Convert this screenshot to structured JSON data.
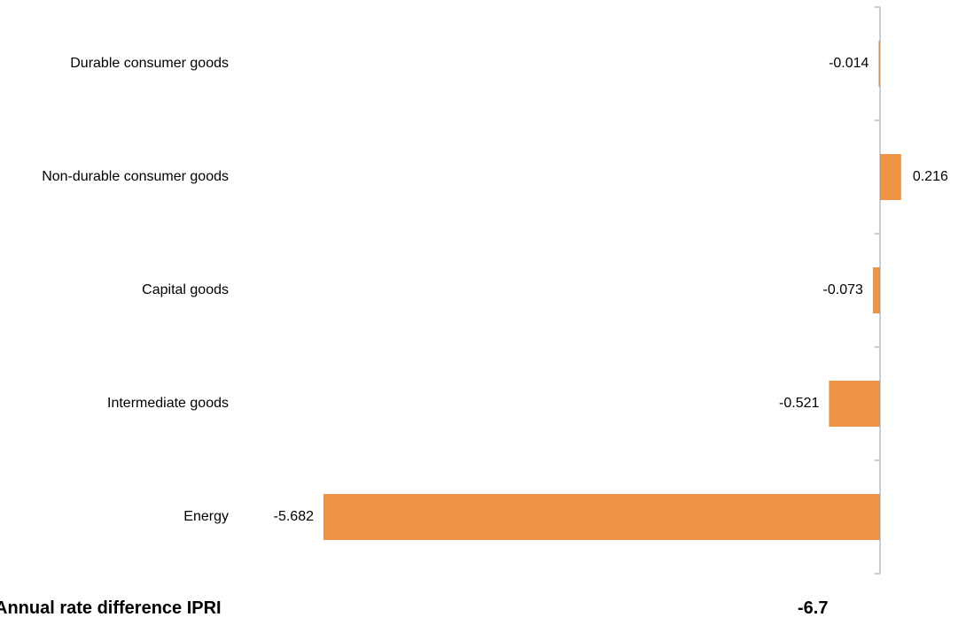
{
  "chart_data": {
    "type": "bar",
    "orientation": "horizontal",
    "categories": [
      "Durable consumer goods",
      "Non-durable consumer goods",
      "Capital goods",
      "Intermediate goods",
      "Energy"
    ],
    "values": [
      -0.014,
      0.216,
      -0.073,
      -0.521,
      -5.682
    ],
    "value_labels": [
      "-0.014",
      "0.216",
      "-0.073",
      "-0.521",
      "-5.682"
    ],
    "bar_color": "#ED9447",
    "axis_color": "#9a9a9a",
    "title": "",
    "xlabel": "",
    "ylabel": "",
    "xlim": [
      -5.682,
      0.216
    ],
    "grid": false,
    "legend": "none"
  },
  "footer": {
    "label": "Annual rate difference IPRI",
    "value": "-6.7"
  }
}
